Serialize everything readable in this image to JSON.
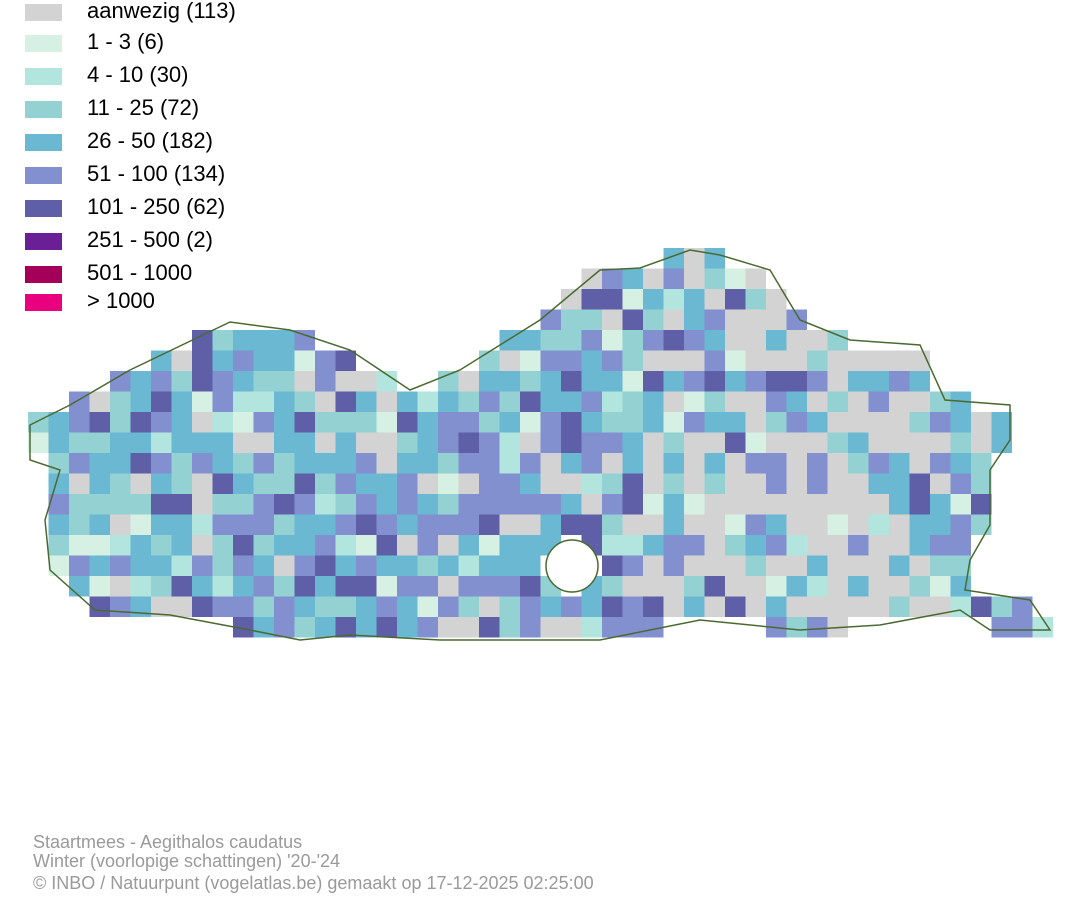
{
  "legend": {
    "items": [
      {
        "label": "aanwezig (113)",
        "color": "#d3d3d3"
      },
      {
        "label": "1 - 3 (6)",
        "color": "#d6f0e3"
      },
      {
        "label": "4 - 10 (30)",
        "color": "#b2e5de"
      },
      {
        "label": "11 - 25 (72)",
        "color": "#93d1d3"
      },
      {
        "label": "26 - 50 (182)",
        "color": "#6bb8d2"
      },
      {
        "label": "51 - 100 (134)",
        "color": "#8290d0"
      },
      {
        "label": "101 - 250 (62)",
        "color": "#5f5fa8"
      },
      {
        "label": "251 - 500 (2)",
        "color": "#6a1f96"
      },
      {
        "label": "501 - 1000",
        "color": "#a4005a"
      },
      {
        "label": "> 1000",
        "color": "#e8007f"
      }
    ]
  },
  "footer": {
    "lines": [
      "Staartmees - Aegithalos caudatus",
      "Winter (voorlopige schattingen) '20-'24",
      "© INBO / Natuurpunt (vogelatlas.be) gemaakt op 17-12-2025 02:25:00"
    ]
  }
}
